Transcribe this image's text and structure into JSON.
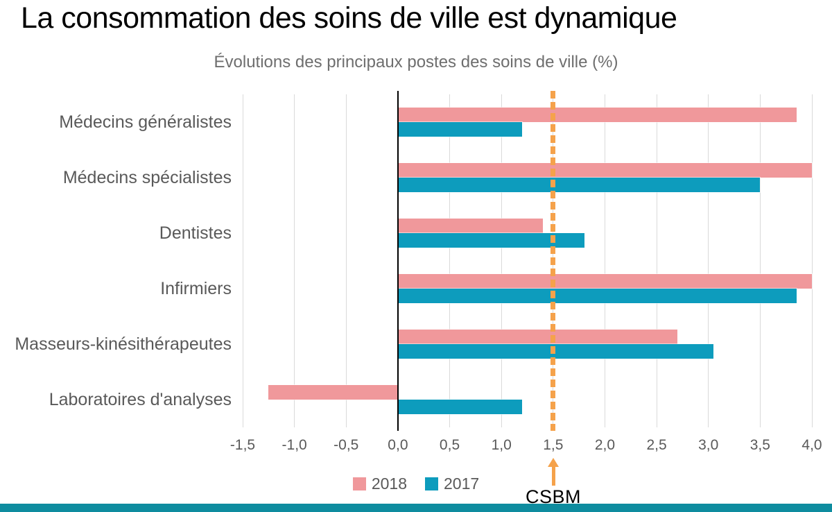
{
  "page": {
    "title": "La consommation des soins de ville est dynamique",
    "footer_color": "#0E8C9F"
  },
  "chart_data": {
    "type": "bar",
    "orientation": "horizontal",
    "title": "Évolutions des principaux postes des soins de ville (%)",
    "categories": [
      "Médecins généralistes",
      "Médecins spécialistes",
      "Dentistes",
      "Infirmiers",
      "Masseurs-kinésithérapeutes",
      "Laboratoires d'analyses"
    ],
    "series": [
      {
        "name": "2018",
        "color": "#F0989B",
        "values": [
          3.85,
          4.0,
          1.4,
          4.0,
          2.7,
          -1.25
        ]
      },
      {
        "name": "2017",
        "color": "#0D9CBD",
        "values": [
          1.2,
          3.5,
          1.8,
          3.85,
          3.05,
          1.2
        ]
      }
    ],
    "xlim": [
      -1.5,
      4.0
    ],
    "xticks": {
      "values": [
        -1.5,
        -1.0,
        -0.5,
        0.0,
        0.5,
        1.0,
        1.5,
        2.0,
        2.5,
        3.0,
        3.5,
        4.0
      ],
      "labels": [
        "-1,5",
        "-1,0",
        "-0,5",
        "0,0",
        "0,5",
        "1,0",
        "1,5",
        "2,0",
        "2,5",
        "3,0",
        "3,5",
        "4,0"
      ]
    },
    "grid": true,
    "gridline_color": "#D9D9D9",
    "zero_line_color": "#000000",
    "legend_position": "bottom",
    "reference_line": {
      "value": 1.5,
      "label": "CSBM",
      "color": "#F5A24B",
      "style": "dashed"
    }
  }
}
